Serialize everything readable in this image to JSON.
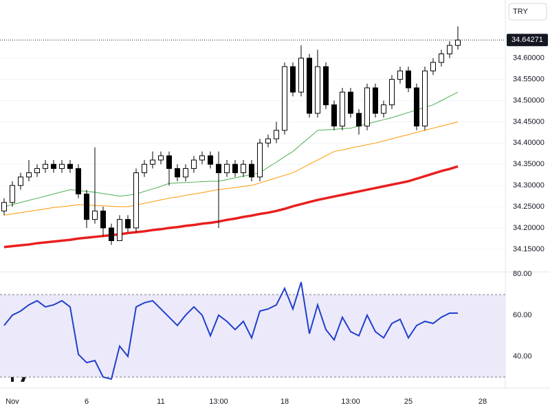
{
  "chart_data": [
    {
      "type": "candlestick",
      "currency_label": "TRY",
      "last_price": 34.64271,
      "up_color": "#ffffff",
      "down_color": "#000000",
      "outline_color": "#000000",
      "xlim": [
        -0.5,
        60.75
      ],
      "ylim": [
        34.098,
        34.737
      ],
      "grid": true,
      "yticks": [
        {
          "value": 34.15,
          "label": "34.15000"
        },
        {
          "value": 34.2,
          "label": "34.20000"
        },
        {
          "value": 34.25,
          "label": "34.25000"
        },
        {
          "value": 34.3,
          "label": "34.30000"
        },
        {
          "value": 34.35,
          "label": "34.35000"
        },
        {
          "value": 34.4,
          "label": "34.40000"
        },
        {
          "value": 34.45,
          "label": "34.45000"
        },
        {
          "value": 34.5,
          "label": "34.50000"
        },
        {
          "value": 34.55,
          "label": "34.55000"
        },
        {
          "value": 34.6,
          "label": "34.60000"
        }
      ],
      "open": [
        34.24,
        34.26,
        34.3,
        34.32,
        34.33,
        34.34,
        34.35,
        34.34,
        34.35,
        34.34,
        34.28,
        34.22,
        34.24,
        34.2,
        34.17,
        34.22,
        34.2,
        34.33,
        34.35,
        34.36,
        34.37,
        34.34,
        34.32,
        34.34,
        34.36,
        34.37,
        34.35,
        34.33,
        34.35,
        34.33,
        34.35,
        34.32,
        34.4,
        34.41,
        34.43,
        34.58,
        34.52,
        34.6,
        34.47,
        34.58,
        34.49,
        34.44,
        34.52,
        34.47,
        34.44,
        34.53,
        34.47,
        34.49,
        34.55,
        34.57,
        34.53,
        34.44,
        34.57,
        34.59,
        34.61,
        34.63
      ],
      "high": [
        34.27,
        34.31,
        34.33,
        34.36,
        34.35,
        34.36,
        34.36,
        34.36,
        34.36,
        34.35,
        34.29,
        34.39,
        34.25,
        34.21,
        34.23,
        34.23,
        34.34,
        34.36,
        34.38,
        34.38,
        34.38,
        34.35,
        34.35,
        34.37,
        34.38,
        34.38,
        34.38,
        34.36,
        34.36,
        34.36,
        34.36,
        34.41,
        34.42,
        34.45,
        34.59,
        34.59,
        34.63,
        34.61,
        34.62,
        34.59,
        34.5,
        34.53,
        34.53,
        34.48,
        34.54,
        34.54,
        34.5,
        34.56,
        34.58,
        34.58,
        34.54,
        34.58,
        34.6,
        34.62,
        34.64,
        34.675
      ],
      "low": [
        34.23,
        34.25,
        34.29,
        34.31,
        34.32,
        34.33,
        34.33,
        34.33,
        34.33,
        34.27,
        34.2,
        34.21,
        34.18,
        34.16,
        34.17,
        34.19,
        34.19,
        34.32,
        34.34,
        34.35,
        34.3,
        34.31,
        34.31,
        34.33,
        34.35,
        34.34,
        34.2,
        34.32,
        34.32,
        34.32,
        34.31,
        34.31,
        34.39,
        34.4,
        34.42,
        34.51,
        34.51,
        34.46,
        34.46,
        34.48,
        34.43,
        34.43,
        34.46,
        34.42,
        34.43,
        34.46,
        34.46,
        34.48,
        34.54,
        34.52,
        34.43,
        34.43,
        34.56,
        34.58,
        34.6,
        34.62
      ],
      "close": [
        34.26,
        34.3,
        34.32,
        34.33,
        34.34,
        34.35,
        34.34,
        34.35,
        34.34,
        34.28,
        34.22,
        34.24,
        34.2,
        34.17,
        34.22,
        34.2,
        34.33,
        34.35,
        34.36,
        34.37,
        34.34,
        34.32,
        34.34,
        34.36,
        34.37,
        34.35,
        34.33,
        34.35,
        34.33,
        34.35,
        34.32,
        34.4,
        34.41,
        34.43,
        34.58,
        34.52,
        34.6,
        34.47,
        34.58,
        34.49,
        34.44,
        34.52,
        34.47,
        34.44,
        34.53,
        34.47,
        34.49,
        34.55,
        34.57,
        34.53,
        34.44,
        34.57,
        34.59,
        34.61,
        34.63,
        34.64271
      ],
      "lines": [
        {
          "color": "#e91e1e",
          "values": [
            34.155,
            34.157,
            34.159,
            34.161,
            34.164,
            34.166,
            34.168,
            34.17,
            34.172,
            34.175,
            34.177,
            34.179,
            34.181,
            34.183,
            34.185,
            34.188,
            34.19,
            34.192,
            34.195,
            34.197,
            34.2,
            34.202,
            34.205,
            34.207,
            34.21,
            34.212,
            34.215,
            34.219,
            34.222,
            34.226,
            34.229,
            34.233,
            34.236,
            34.24,
            34.245,
            34.251,
            34.256,
            34.261,
            34.266,
            34.27,
            34.274,
            34.278,
            34.282,
            34.286,
            34.29,
            34.294,
            34.298,
            34.302,
            34.306,
            34.31,
            34.316,
            34.322,
            34.328,
            34.334,
            34.339,
            34.345
          ]
        },
        {
          "color": "#ff9800",
          "values": [
            34.23,
            34.233,
            34.236,
            34.239,
            34.242,
            34.245,
            34.248,
            34.25,
            34.252,
            34.255,
            34.254,
            34.253,
            34.252,
            34.251,
            34.25,
            34.25,
            34.254,
            34.258,
            34.262,
            34.266,
            34.27,
            34.273,
            34.277,
            34.28,
            34.283,
            34.287,
            34.29,
            34.293,
            34.295,
            34.298,
            34.3,
            34.306,
            34.312,
            34.318,
            34.324,
            34.33,
            34.34,
            34.35,
            34.36,
            34.37,
            34.38,
            34.384,
            34.388,
            34.392,
            34.396,
            34.4,
            34.405,
            34.41,
            34.415,
            34.42,
            34.425,
            34.43,
            34.435,
            34.44,
            34.445,
            34.45
          ]
        },
        {
          "color": "#4caf50",
          "values": [
            34.25,
            34.255,
            34.26,
            34.265,
            34.27,
            34.275,
            34.28,
            34.285,
            34.29,
            34.288,
            34.286,
            34.284,
            34.281,
            34.278,
            34.275,
            34.277,
            34.28,
            34.286,
            34.292,
            34.298,
            34.305,
            34.306,
            34.307,
            34.308,
            34.309,
            34.31,
            34.31,
            34.314,
            34.318,
            34.322,
            34.326,
            34.33,
            34.343,
            34.355,
            34.368,
            34.38,
            34.397,
            34.413,
            34.43,
            34.431,
            34.432,
            34.434,
            34.435,
            34.44,
            34.445,
            34.45,
            34.455,
            34.46,
            34.466,
            34.472,
            34.478,
            34.484,
            34.49,
            34.5,
            34.51,
            34.52
          ]
        }
      ]
    },
    {
      "type": "line",
      "color": "#1e3fcc",
      "band": [
        30,
        70
      ],
      "band_color": "#ece9fa",
      "xlim": [
        -0.5,
        60.75
      ],
      "ylim": [
        24.7,
        81.3
      ],
      "yticks": [
        {
          "value": 40,
          "label": "40.00"
        },
        {
          "value": 60,
          "label": "60.00"
        },
        {
          "value": 80,
          "label": "80.00"
        }
      ],
      "xticks": [
        {
          "value": 1,
          "label": "Nov"
        },
        {
          "value": 10,
          "label": "6"
        },
        {
          "value": 19,
          "label": "11"
        },
        {
          "value": 26,
          "label": "13:00"
        },
        {
          "value": 34,
          "label": "18"
        },
        {
          "value": 42,
          "label": "13:00"
        },
        {
          "value": 49,
          "label": "25"
        },
        {
          "value": 58,
          "label": "28"
        }
      ],
      "values": [
        55,
        60,
        62,
        65,
        67,
        64,
        65,
        67,
        64,
        41,
        37,
        38,
        30,
        29,
        45,
        40,
        64,
        66,
        67,
        63,
        59,
        55,
        60,
        64,
        60,
        50,
        60,
        57,
        53,
        57,
        49,
        62,
        63,
        65,
        73,
        63,
        76,
        51,
        65,
        53,
        48,
        59,
        52,
        50,
        60,
        52,
        49,
        56,
        58,
        49,
        55,
        57,
        56,
        59,
        61,
        61
      ]
    }
  ]
}
